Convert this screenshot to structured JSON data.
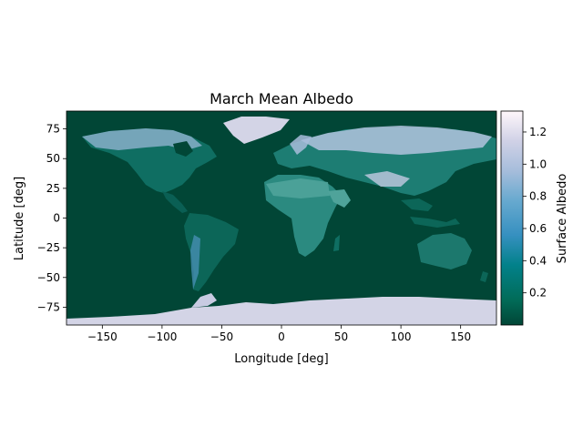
{
  "title": "March Mean Albedo",
  "xlabel": "Longitude [deg]",
  "ylabel": "Latitude [deg]",
  "colorbar_label": "Surface Albedo",
  "colormap": "PuBuGn_r",
  "colors": {
    "ocean": "#014636",
    "land_low": "#02584a",
    "land_mid": "#1f8a82",
    "ice": "#d3d4e6"
  },
  "x_ticks": [
    {
      "value": -150,
      "label": "−150"
    },
    {
      "value": -100,
      "label": "−100"
    },
    {
      "value": -50,
      "label": "−50"
    },
    {
      "value": 0,
      "label": "0"
    },
    {
      "value": 50,
      "label": "50"
    },
    {
      "value": 100,
      "label": "100"
    },
    {
      "value": 150,
      "label": "150"
    }
  ],
  "y_ticks": [
    {
      "value": 75,
      "label": "75"
    },
    {
      "value": 50,
      "label": "50"
    },
    {
      "value": 25,
      "label": "25"
    },
    {
      "value": 0,
      "label": "0"
    },
    {
      "value": -25,
      "label": "−25"
    },
    {
      "value": -50,
      "label": "−50"
    },
    {
      "value": -75,
      "label": "−75"
    }
  ],
  "colorbar_ticks": [
    {
      "value": 0.2,
      "label": "0.2"
    },
    {
      "value": 0.4,
      "label": "0.4"
    },
    {
      "value": 0.6,
      "label": "0.6"
    },
    {
      "value": 0.8,
      "label": "0.8"
    },
    {
      "value": 1.0,
      "label": "1.0"
    },
    {
      "value": 1.2,
      "label": "1.2"
    }
  ],
  "chart_data": {
    "type": "heatmap",
    "xlim": [
      -180,
      180
    ],
    "ylim": [
      -90,
      90
    ],
    "color_range": [
      0.0,
      1.33
    ]
  }
}
